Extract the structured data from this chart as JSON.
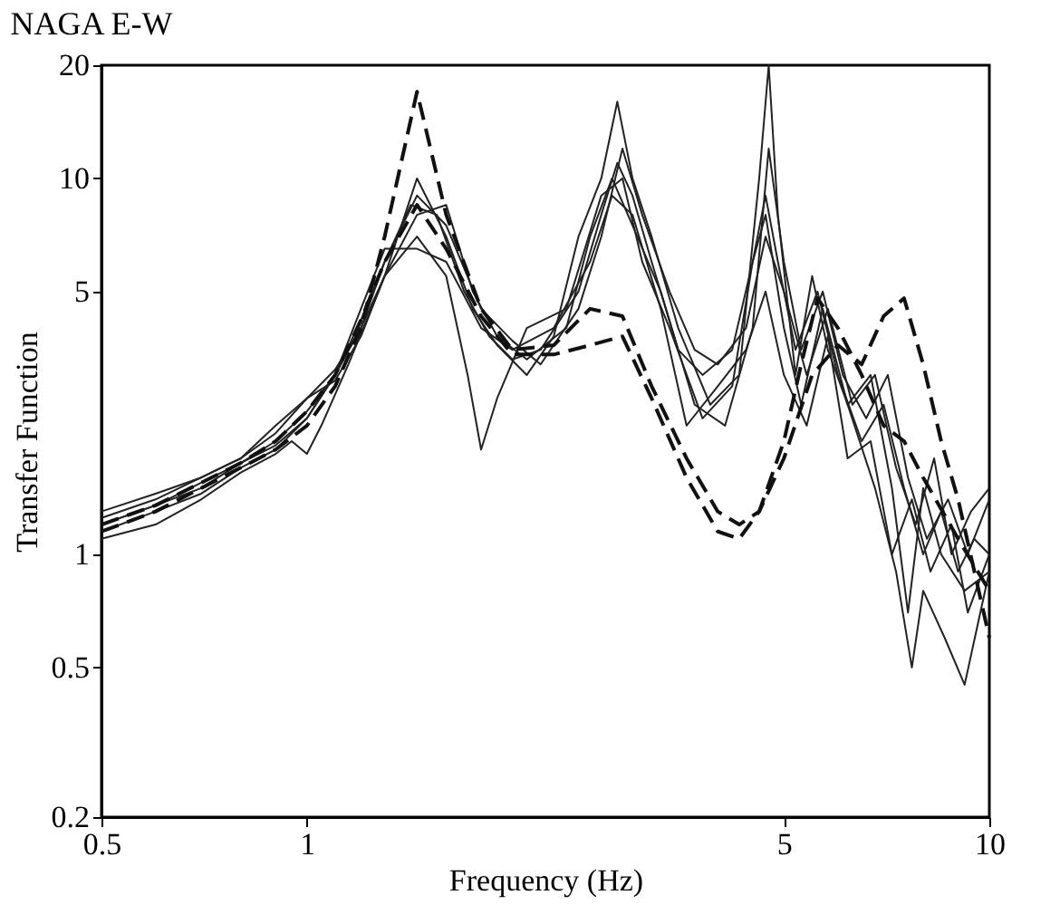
{
  "chart_data": {
    "type": "line",
    "title": "NAGA E-W",
    "xlabel": "Frequency (Hz)",
    "ylabel": "Transfer Function",
    "log": "xy",
    "grid": false,
    "marker": "none",
    "xlim": [
      0.5,
      10
    ],
    "xticks": [
      0.5,
      1,
      5,
      10
    ],
    "ylim": [
      0.2,
      20
    ],
    "yticks": [
      0.2,
      0.5,
      1,
      5,
      10,
      20
    ],
    "series": [
      {
        "color": "#222222",
        "line_style": "solid",
        "x": [
          0.5,
          0.6,
          0.7,
          0.8,
          0.9,
          1.0,
          1.1,
          1.2,
          1.3,
          1.42,
          1.55,
          1.7,
          1.85,
          2.0,
          2.2,
          2.5,
          2.7,
          2.85,
          3.0,
          3.2,
          3.5,
          3.8,
          4.2,
          4.5,
          4.7,
          4.9,
          5.2,
          5.6,
          6.0,
          6.5,
          7,
          7.5,
          8,
          8.5,
          9,
          9.5,
          10
        ],
        "values": [
          1.2,
          1.35,
          1.55,
          1.75,
          1.95,
          2.3,
          3,
          4.2,
          6,
          8.5,
          8,
          5,
          3.8,
          3.3,
          3.5,
          5,
          8,
          11,
          9,
          6,
          3.5,
          3,
          3.5,
          6,
          9,
          6,
          3.5,
          5,
          3,
          2,
          2.5,
          1.5,
          1,
          1.3,
          0.9,
          1.1,
          1.0
        ]
      },
      {
        "color": "#222222",
        "line_style": "solid",
        "x": [
          0.5,
          0.6,
          0.7,
          0.8,
          0.9,
          1.0,
          1.1,
          1.2,
          1.3,
          1.45,
          1.6,
          1.75,
          1.9,
          2.1,
          2.3,
          2.5,
          2.7,
          2.85,
          3.0,
          3.2,
          3.5,
          3.9,
          4.3,
          4.6,
          4.75,
          4.9,
          5.2,
          5.5,
          5.8,
          6.2,
          6.7,
          7.2,
          7.6,
          8,
          8.5,
          9.2,
          10
        ],
        "values": [
          1.25,
          1.4,
          1.6,
          1.8,
          2.1,
          2.6,
          2.9,
          3.8,
          5.5,
          10,
          7,
          4.5,
          3.6,
          3,
          3.8,
          7,
          10,
          16,
          10,
          7,
          4,
          2.5,
          3,
          10,
          20,
          8,
          3,
          5.5,
          3.5,
          2.5,
          3,
          1.5,
          0.7,
          1.5,
          1,
          0.8,
          0.9
        ]
      },
      {
        "color": "#222222",
        "line_style": "solid",
        "x": [
          0.5,
          0.6,
          0.7,
          0.8,
          0.9,
          0.95,
          1.0,
          1.05,
          1.15,
          1.3,
          1.45,
          1.6,
          1.72,
          1.8,
          1.9,
          2.1,
          2.4,
          2.7,
          2.9,
          3.1,
          3.4,
          3.8,
          4.2,
          4.5,
          4.7,
          5.0,
          5.3,
          5.7,
          6.2,
          6.8,
          7.3,
          7.7,
          8,
          8.6,
          9.2,
          9.7,
          10
        ],
        "values": [
          1.1,
          1.2,
          1.4,
          1.65,
          1.85,
          2.0,
          1.85,
          2.2,
          3.2,
          5.5,
          7,
          5.5,
          3,
          1.9,
          2.6,
          4,
          4.5,
          9,
          10,
          6,
          4,
          2.3,
          2.8,
          6,
          8,
          4,
          2.5,
          4.5,
          2.5,
          1.5,
          0.9,
          0.5,
          0.8,
          0.6,
          0.45,
          0.7,
          0.9
        ]
      },
      {
        "color": "#222222",
        "line_style": "solid",
        "x": [
          0.5,
          0.6,
          0.7,
          0.8,
          0.9,
          1.0,
          1.1,
          1.2,
          1.3,
          1.45,
          1.6,
          1.8,
          2.0,
          2.2,
          2.5,
          2.7,
          2.9,
          3.1,
          3.4,
          3.7,
          4.0,
          4.4,
          4.7,
          5.0,
          5.4,
          5.8,
          6.3,
          6.8,
          7.3,
          7.8,
          8.3,
          8.8,
          9.4,
          10
        ],
        "values": [
          1.3,
          1.45,
          1.6,
          1.8,
          2.2,
          2.6,
          3.1,
          4,
          6,
          9,
          7.5,
          4.5,
          3.7,
          3.2,
          4.5,
          7,
          12,
          8,
          5,
          3.5,
          3.2,
          4,
          7,
          5,
          3,
          4.5,
          2.5,
          3,
          1.7,
          1.2,
          1.8,
          1,
          1.3,
          1.5
        ]
      },
      {
        "color": "#222222",
        "line_style": "solid",
        "x": [
          0.5,
          0.6,
          0.7,
          0.8,
          0.9,
          1.0,
          1.1,
          1.2,
          1.3,
          1.45,
          1.6,
          1.8,
          2.0,
          2.3,
          2.6,
          2.8,
          3.0,
          3.3,
          3.6,
          4.0,
          4.4,
          4.7,
          5.0,
          5.4,
          5.8,
          6.2,
          6.7,
          7.2,
          7.7,
          8.2,
          8.8,
          9.3,
          10
        ],
        "values": [
          1.15,
          1.3,
          1.45,
          1.7,
          1.9,
          2.3,
          3,
          4.5,
          6.5,
          6.5,
          6,
          4,
          3.5,
          4,
          6,
          9,
          8,
          4.5,
          2.2,
          2.8,
          3.5,
          5,
          3,
          2.2,
          3.8,
          1.8,
          2,
          1,
          1.4,
          0.9,
          1.2,
          0.7,
          1.0
        ]
      },
      {
        "color": "#222222",
        "line_style": "solid",
        "x": [
          0.5,
          0.6,
          0.7,
          0.8,
          0.9,
          1.0,
          1.1,
          1.2,
          1.3,
          1.45,
          1.6,
          1.75,
          1.9,
          2.1,
          2.4,
          2.6,
          2.8,
          3.0,
          3.3,
          3.7,
          4.1,
          4.5,
          4.75,
          5.0,
          5.3,
          5.7,
          6.1,
          6.6,
          7.1,
          7.6,
          8.1,
          8.7,
          9.3,
          10
        ],
        "values": [
          1.2,
          1.35,
          1.5,
          1.75,
          2,
          2.4,
          3,
          4,
          5.5,
          8,
          8.5,
          5,
          3.8,
          3.3,
          4,
          7,
          10,
          7.5,
          5,
          2.5,
          2.2,
          4,
          12,
          6,
          3.5,
          5,
          3,
          2.3,
          3,
          1.6,
          1.1,
          1.4,
          1,
          1.4
        ]
      },
      {
        "color": "#111111",
        "line_style": "dashed",
        "x": [
          0.5,
          0.6,
          0.7,
          0.8,
          0.9,
          1.0,
          1.1,
          1.2,
          1.3,
          1.45,
          1.6,
          1.8,
          2.0,
          2.3,
          2.6,
          2.9,
          3.2,
          3.6,
          4.0,
          4.3,
          4.6,
          5.0,
          5.5,
          6,
          6.5,
          7,
          7.5,
          8,
          8.5,
          9,
          10
        ],
        "values": [
          1.15,
          1.3,
          1.5,
          1.7,
          1.9,
          2.2,
          2.8,
          4,
          7,
          17,
          8,
          4.5,
          3.5,
          3.6,
          4.5,
          4.3,
          2.8,
          1.8,
          1.3,
          1.2,
          1.3,
          1.8,
          3,
          3.6,
          3.2,
          4.3,
          4.8,
          3.2,
          2,
          1.4,
          0.6
        ]
      },
      {
        "color": "#111111",
        "line_style": "dashed",
        "x": [
          0.5,
          0.6,
          0.7,
          0.8,
          0.9,
          1.0,
          1.1,
          1.2,
          1.3,
          1.45,
          1.6,
          1.8,
          2.0,
          2.3,
          2.6,
          2.9,
          3.2,
          3.6,
          4.0,
          4.3,
          4.6,
          5.0,
          5.3,
          5.6,
          6.0,
          6.5,
          7,
          7.5,
          8,
          9,
          10
        ],
        "values": [
          1.2,
          1.35,
          1.55,
          1.75,
          2,
          2.4,
          3,
          4.2,
          6,
          8.5,
          6.5,
          4.3,
          3.4,
          3.4,
          3.6,
          3.8,
          2.6,
          1.6,
          1.15,
          1.1,
          1.3,
          2,
          3.2,
          4.8,
          4,
          3,
          2.2,
          2,
          1.6,
          1.1,
          0.8
        ]
      }
    ]
  }
}
